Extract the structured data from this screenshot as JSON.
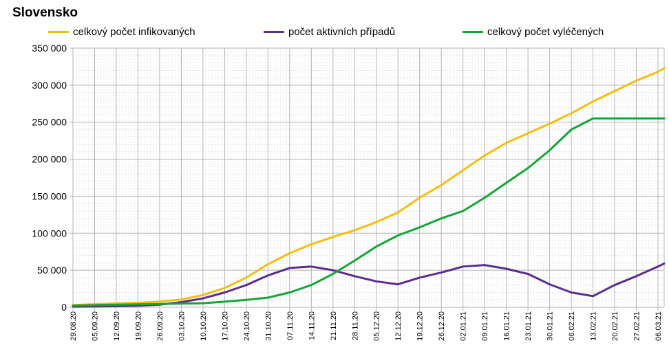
{
  "chart_data": {
    "type": "line",
    "title": "Slovensko",
    "xlabel": "",
    "ylabel": "",
    "ylim": [
      0,
      350000
    ],
    "y_ticks": [
      "0",
      "50 000",
      "100 000",
      "150 000",
      "200 000",
      "250 000",
      "300 000",
      "350 000"
    ],
    "x_tick_labels": [
      "29.08.20",
      "05.09.20",
      "12.09.20",
      "19.09.20",
      "26.09.20",
      "03.10.20",
      "10.10.20",
      "17.10.20",
      "24.10.20",
      "31.10.20",
      "07.11.20",
      "14.11.20",
      "21.11.20",
      "28.11.20",
      "05.12.20",
      "12.12.20",
      "19.12.20",
      "26.12.20",
      "02.01.21",
      "09.01.21",
      "16.01.21",
      "23.01.21",
      "30.01.21",
      "06.02.21",
      "13.02.21",
      "20.02.21",
      "27.02.21",
      "06.03.21"
    ],
    "grid": true,
    "legend_position": "top",
    "series": [
      {
        "name": "celkový počet infikovaných",
        "color": "#f5bd11",
        "x": [
          "29.08.20",
          "05.09.20",
          "12.09.20",
          "19.09.20",
          "26.09.20",
          "03.10.20",
          "10.10.20",
          "17.10.20",
          "24.10.20",
          "31.10.20",
          "07.11.20",
          "14.11.20",
          "21.11.20",
          "28.11.20",
          "05.12.20",
          "12.12.20",
          "19.12.20",
          "26.12.20",
          "02.01.21",
          "09.01.21",
          "16.01.21",
          "23.01.21",
          "30.01.21",
          "06.02.21",
          "13.02.21",
          "20.02.21",
          "27.02.21",
          "06.03.21",
          "08.03.21"
        ],
        "values": [
          3000,
          4200,
          5200,
          6000,
          7500,
          10500,
          16500,
          26000,
          40000,
          58000,
          73000,
          85000,
          95000,
          104000,
          115000,
          128000,
          148000,
          165000,
          185000,
          205000,
          222000,
          235000,
          248000,
          262000,
          278000,
          292000,
          306000,
          318000,
          323000
        ]
      },
      {
        "name": "počet aktivních případů",
        "color": "#5b2d8e",
        "x": [
          "29.08.20",
          "05.09.20",
          "12.09.20",
          "19.09.20",
          "26.09.20",
          "03.10.20",
          "10.10.20",
          "17.10.20",
          "24.10.20",
          "31.10.20",
          "07.11.20",
          "14.11.20",
          "21.11.20",
          "28.11.20",
          "05.12.20",
          "12.12.20",
          "19.12.20",
          "26.12.20",
          "02.01.21",
          "09.01.21",
          "16.01.21",
          "23.01.21",
          "30.01.21",
          "06.02.21",
          "13.02.21",
          "20.02.21",
          "27.02.21",
          "06.03.21",
          "08.03.21"
        ],
        "values": [
          800,
          1000,
          1500,
          2000,
          3500,
          7000,
          12000,
          20000,
          30000,
          43000,
          53000,
          55000,
          50000,
          42000,
          35000,
          31000,
          40000,
          47000,
          55000,
          57000,
          52000,
          45000,
          31000,
          20000,
          15000,
          30000,
          42000,
          55000,
          59000
        ]
      },
      {
        "name": "celkový počet vyléčených",
        "color": "#13a535",
        "x": [
          "29.08.20",
          "05.09.20",
          "12.09.20",
          "19.09.20",
          "26.09.20",
          "03.10.20",
          "10.10.20",
          "17.10.20",
          "24.10.20",
          "31.10.20",
          "07.11.20",
          "14.11.20",
          "21.11.20",
          "28.11.20",
          "05.12.20",
          "12.12.20",
          "19.12.20",
          "26.12.20",
          "02.01.21",
          "09.01.21",
          "16.01.21",
          "23.01.21",
          "30.01.21",
          "06.02.21",
          "13.02.21",
          "20.02.21",
          "27.02.21",
          "06.03.21",
          "08.03.21"
        ],
        "values": [
          2200,
          3000,
          3500,
          4000,
          4500,
          5000,
          5500,
          7500,
          10000,
          13000,
          20000,
          30000,
          45000,
          63000,
          82000,
          97000,
          108000,
          120000,
          130000,
          148000,
          168000,
          188000,
          212000,
          240000,
          255000,
          255000,
          255000,
          255000,
          255000
        ]
      }
    ]
  }
}
